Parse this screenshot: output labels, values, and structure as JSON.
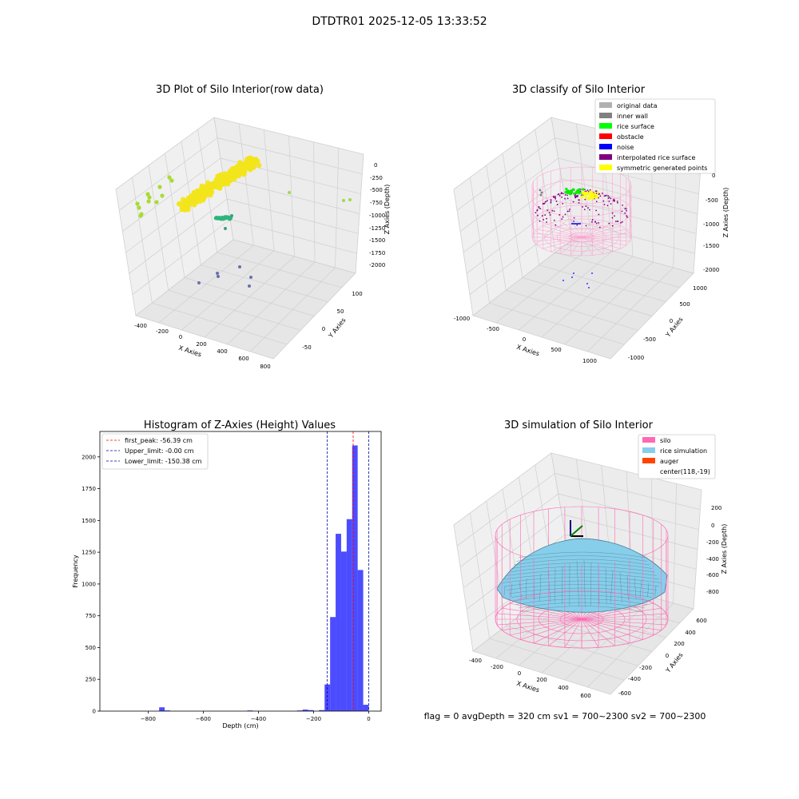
{
  "figure": {
    "suptitle": "DTDTR01 2025-12-05 13:33:52",
    "footer": "flag = 0     avgDepth = 320 cm  sv1 = 700~2300  sv2 = 700~2300"
  },
  "chart_data": [
    {
      "type": "scatter",
      "subtype": "3d",
      "title": "3D Plot of Silo Interior(row data)",
      "xlabel": "X Axies",
      "ylabel": "Y Axies",
      "zlabel": "Z Axies (Depth)",
      "x_ticks": [
        "-400",
        "-200",
        "0",
        "200",
        "400",
        "600",
        "800"
      ],
      "y_ticks": [
        "-50",
        "0",
        "50",
        "100"
      ],
      "z_ticks": [
        "0",
        "-250",
        "-500",
        "-750",
        "-1000",
        "-1250",
        "-1500",
        "-1750",
        "-2000"
      ],
      "xlim": [
        -500,
        800
      ],
      "ylim": [
        -80,
        130
      ],
      "zlim": [
        -2000,
        0
      ],
      "colormap": "viridis",
      "grid": true
    },
    {
      "type": "scatter",
      "subtype": "3d",
      "title": "3D classify of Silo Interior",
      "xlabel": "X Axies",
      "ylabel": "Y Axies",
      "zlabel": "Z Axies (Depth)",
      "x_ticks": [
        "-1000",
        "-500",
        "0",
        "500",
        "1000"
      ],
      "y_ticks": [
        "-1000",
        "-500",
        "0",
        "500",
        "1000"
      ],
      "z_ticks": [
        "0",
        "-500",
        "-1000",
        "-1500",
        "-2000"
      ],
      "xlim": [
        -1000,
        1000
      ],
      "ylim": [
        -1000,
        1000
      ],
      "zlim": [
        -2000,
        0
      ],
      "legend_position": "top-right",
      "legend": [
        {
          "label": "original data",
          "color": "#b0b0b0"
        },
        {
          "label": "inner wall",
          "color": "#808080"
        },
        {
          "label": "rice surface",
          "color": "#00ff00"
        },
        {
          "label": "obstacle",
          "color": "#ff0000"
        },
        {
          "label": "noise",
          "color": "#0000ff"
        },
        {
          "label": "interpolated rice surface",
          "color": "#800080"
        },
        {
          "label": "symmetric generated points",
          "color": "#ffff00"
        }
      ],
      "grid": true
    },
    {
      "type": "bar",
      "subtype": "histogram",
      "title": "Histogram of Z-Axies (Height) Values",
      "xlabel": "Depth (cm)",
      "ylabel": "Frequency",
      "xlim": [
        -975,
        45
      ],
      "ylim": [
        0,
        2200
      ],
      "x_ticks": [
        -800,
        -600,
        -400,
        -200,
        0
      ],
      "x_tick_labels": [
        "−800",
        "−600",
        "−400",
        "−200",
        "0"
      ],
      "y_ticks": [
        0,
        250,
        500,
        750,
        1000,
        1250,
        1500,
        1750,
        2000
      ],
      "bin_width": 20,
      "bar_color": "#0000ff",
      "bins": [
        {
          "x": -750,
          "value": 30
        },
        {
          "x": -730,
          "value": 5
        },
        {
          "x": -430,
          "value": 5
        },
        {
          "x": -250,
          "value": 5
        },
        {
          "x": -230,
          "value": 12
        },
        {
          "x": -210,
          "value": 8
        },
        {
          "x": -170,
          "value": 8
        },
        {
          "x": -150,
          "value": 210
        },
        {
          "x": -130,
          "value": 740
        },
        {
          "x": -110,
          "value": 1395
        },
        {
          "x": -90,
          "value": 1255
        },
        {
          "x": -70,
          "value": 1510
        },
        {
          "x": -50,
          "value": 2090
        },
        {
          "x": -30,
          "value": 1110
        },
        {
          "x": -10,
          "value": 50
        }
      ],
      "vlines": [
        {
          "x": -56.39,
          "color": "#ff0000",
          "label": "first_peak: -56.39 cm"
        },
        {
          "x": 0,
          "color": "#0000aa",
          "label": "Upper_limit: -0.00 cm"
        },
        {
          "x": -150.38,
          "color": "#0000aa",
          "label": "Lower_limit: -150.38 cm"
        }
      ],
      "legend_position": "top-left"
    },
    {
      "type": "area",
      "subtype": "3d-surface",
      "title": "3D simulation of Silo Interior",
      "xlabel": "X Axies",
      "ylabel": "Y Axies",
      "zlabel": "Z Axies (Depth)",
      "x_ticks": [
        "-400",
        "-200",
        "0",
        "200",
        "400",
        "600"
      ],
      "y_ticks": [
        "-600",
        "-400",
        "-200",
        "0",
        "200",
        "400",
        "600"
      ],
      "z_ticks": [
        "200",
        "0",
        "-200",
        "-400",
        "-600",
        "-800"
      ],
      "legend_position": "top-right",
      "legend": [
        {
          "label": "silo",
          "color": "#ff69b4"
        },
        {
          "label": "rice simulation",
          "color": "#87ceeb"
        },
        {
          "label": "auger",
          "color": "#ff4500"
        },
        {
          "label": "center(118,-19)",
          "color": ""
        }
      ],
      "grid": true
    }
  ]
}
